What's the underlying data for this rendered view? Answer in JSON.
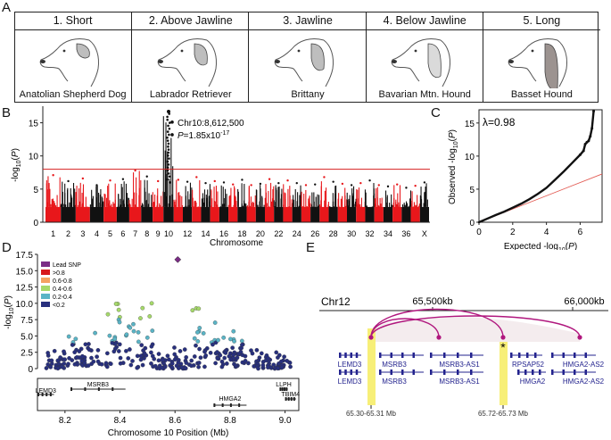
{
  "panel_labels": {
    "a": "A",
    "b": "B",
    "c": "C",
    "d": "D",
    "e": "E"
  },
  "panel_a": {
    "categories": [
      {
        "title": "1. Short",
        "breed": "Anatolian Shepherd Dog",
        "icon": "short-ear-dog-icon"
      },
      {
        "title": "2. Above Jawline",
        "breed": "Labrador Retriever",
        "icon": "labrador-dog-icon"
      },
      {
        "title": "3. Jawline",
        "breed": "Brittany",
        "icon": "brittany-dog-icon"
      },
      {
        "title": "4. Below Jawline",
        "breed": "Bavarian Mtn. Hound",
        "icon": "bavarian-hound-icon"
      },
      {
        "title": "5. Long",
        "breed": "Basset Hound",
        "icon": "basset-hound-icon"
      }
    ]
  },
  "chart_data": [
    {
      "id": "manhattan",
      "type": "scatter",
      "title": "",
      "xlabel": "Chromosome",
      "ylabel": "-log10(P)",
      "ylim": [
        0,
        17.5
      ],
      "yticks": [
        0,
        5,
        10,
        15
      ],
      "xtick_labels": [
        "1",
        "2",
        "3",
        "4",
        "5",
        "6",
        "7",
        "8",
        "9",
        "10",
        "12",
        "14",
        "16",
        "18",
        "20",
        "22",
        "24",
        "26",
        "28",
        "30",
        "32",
        "34",
        "36",
        "X"
      ],
      "significance_threshold": 8.0,
      "annotation": {
        "snp": "Chr10:8,612,500",
        "p_text": "P=1.85x10",
        "p_exp": "-17"
      },
      "peak": {
        "chromosome": "10",
        "value": 16.7
      },
      "chromosome_peaks": [
        7.1,
        6.2,
        6.6,
        5.6,
        6.3,
        6.5,
        7.8,
        6.9,
        6.2,
        16.7,
        6.4,
        6.1,
        6.8,
        5.9,
        6.2,
        6.0,
        5.7,
        6.4,
        5.6,
        5.8,
        6.5,
        5.9,
        6.3,
        5.9,
        5.6,
        5.7,
        6.8,
        6.1,
        5.8,
        5.6,
        5.9,
        6.3,
        5.6,
        5.4,
        5.7,
        5.2,
        5.5,
        6.0
      ],
      "colors": {
        "odd": "#e8171b",
        "even": "#111111",
        "threshold": "#d61f1f"
      }
    },
    {
      "id": "qq",
      "type": "scatter",
      "xlabel": "Expected -log10(P)",
      "ylabel": "Observed -log10(P)",
      "xlim": [
        0,
        7.3
      ],
      "ylim": [
        0,
        17
      ],
      "xticks": [
        0,
        2,
        4,
        6
      ],
      "yticks": [
        0,
        5,
        10,
        15
      ],
      "lambda_text": "λ=0.98",
      "points": [
        [
          0,
          0
        ],
        [
          0.5,
          0.55
        ],
        [
          1,
          1.1
        ],
        [
          1.5,
          1.6
        ],
        [
          2,
          2.2
        ],
        [
          2.5,
          2.8
        ],
        [
          3,
          3.5
        ],
        [
          3.5,
          4.3
        ],
        [
          4,
          5.2
        ],
        [
          4.5,
          6.4
        ],
        [
          5,
          7.6
        ],
        [
          5.5,
          8.9
        ],
        [
          6,
          10.2
        ],
        [
          6.2,
          10.8
        ],
        [
          6.3,
          11.8
        ],
        [
          6.4,
          12.1
        ],
        [
          6.5,
          12.3
        ],
        [
          6.6,
          13.0
        ],
        [
          6.7,
          14.2
        ],
        [
          6.8,
          16.8
        ]
      ],
      "diagonal": [
        [
          0,
          0
        ],
        [
          7.3,
          7.3
        ]
      ]
    },
    {
      "id": "regional",
      "type": "scatter",
      "xlabel": "Chromosome 10 Position (Mb)",
      "ylabel": "-log10(P)",
      "xlim": [
        8.1,
        9.05
      ],
      "ylim": [
        0,
        17.5
      ],
      "xticks": [
        8.2,
        8.4,
        8.6,
        8.8,
        9.0
      ],
      "yticks": [
        0,
        2.5,
        5,
        7.5,
        10,
        12.5,
        15,
        17.5
      ],
      "ytick_labels": [
        "0",
        "2.5",
        "5.0",
        "7.5",
        "10.0",
        "12.5",
        "15.0",
        "17.5"
      ],
      "legend": [
        {
          "label": "Lead SNP",
          "color": "#7b2d86"
        },
        {
          "label": ">0.8",
          "color": "#d7191c"
        },
        {
          "label": "0.6-0.8",
          "color": "#f4a261"
        },
        {
          "label": "0.4-0.6",
          "color": "#a6d96a"
        },
        {
          "label": "0.2-0.4",
          "color": "#5ab4c6"
        },
        {
          "label": "<0.2",
          "color": "#28307e"
        }
      ],
      "lead_snp": {
        "x": 8.61,
        "y": 16.7
      },
      "genes": [
        {
          "name": "LEMD3",
          "start": 8.1,
          "end": 8.16
        },
        {
          "name": "MSRB3",
          "start": 8.22,
          "end": 8.42
        },
        {
          "name": "HMGA2",
          "start": 8.74,
          "end": 8.86
        },
        {
          "name": "LLPH",
          "start": 8.98,
          "end": 9.01
        },
        {
          "name": "TBIM4",
          "start": 9.0,
          "end": 9.04
        }
      ]
    }
  ],
  "panel_e": {
    "chr_label": "Chr12",
    "ticks": [
      "65,500kb",
      "66,000kb"
    ],
    "genes_row1": [
      "LEMD3",
      "MSRB3",
      "MSRB3-AS1",
      "RPSAP52",
      "HMGA2-AS2"
    ],
    "genes_row2": [
      "LEMD3",
      "MSRB3",
      "MSRB3-AS1",
      "HMGA2",
      "HMGA2-AS2"
    ],
    "star": "*",
    "region1": "65.30-65.31 Mb",
    "region2": "65.72-65.73 Mb",
    "colors": {
      "arc": "#b0177e",
      "highlight": "#f7ef78",
      "gene": "#23238e"
    }
  }
}
